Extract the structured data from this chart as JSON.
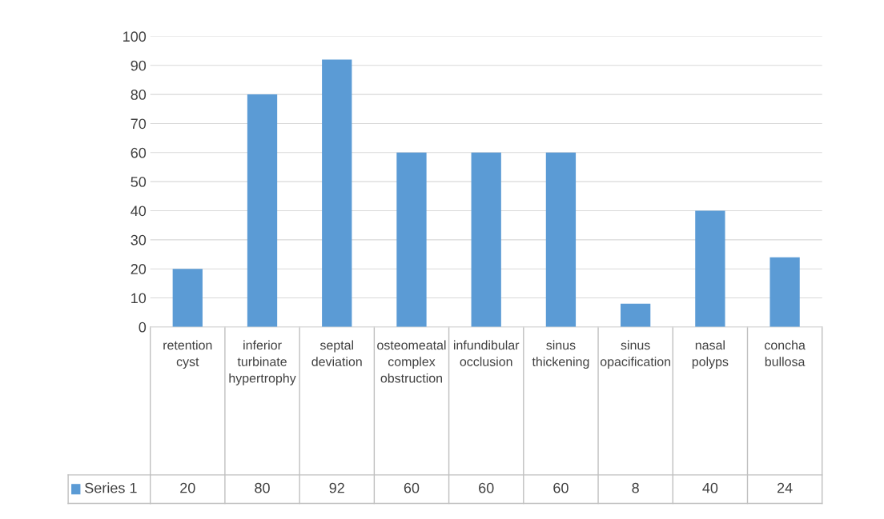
{
  "chart_data": {
    "type": "bar",
    "categories": [
      "retention cyst",
      "inferior turbinate hypertrophy",
      "septal deviation",
      "osteomeatal complex obstruction",
      "infundibular occlusion",
      "sinus thickening",
      "sinus opacification",
      "nasal polyps",
      "concha bullosa"
    ],
    "series": [
      {
        "name": "Series 1",
        "color": "#5b9bd5",
        "values": [
          20,
          80,
          92,
          60,
          60,
          60,
          8,
          40,
          24
        ]
      }
    ],
    "ylim": [
      0,
      100
    ],
    "yticks": [
      0,
      10,
      20,
      30,
      40,
      50,
      60,
      70,
      80,
      90,
      100
    ],
    "grid": "y",
    "legend": "bottom",
    "data_labels": true
  }
}
